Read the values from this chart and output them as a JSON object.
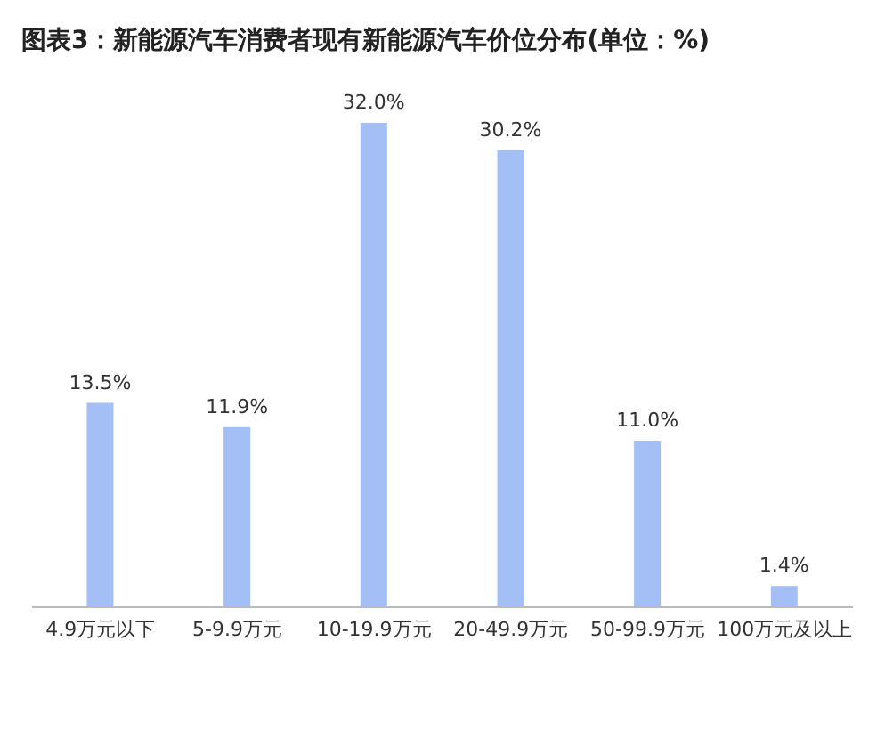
{
  "chart_data": {
    "type": "bar",
    "title": "图表3：新能源汽车消费者现有新能源汽车价位分布(单位：%)",
    "categories": [
      "4.9万元以下",
      "5-9.9万元",
      "10-19.9万元",
      "20-49.9万元",
      "50-99.9万元",
      "100万元及以上"
    ],
    "values": [
      13.5,
      11.9,
      32.0,
      30.2,
      11.0,
      1.4
    ],
    "value_labels": [
      "13.5%",
      "11.9%",
      "32.0%",
      "30.2%",
      "11.0%",
      "1.4%"
    ],
    "color": "#a4bff5"
  }
}
